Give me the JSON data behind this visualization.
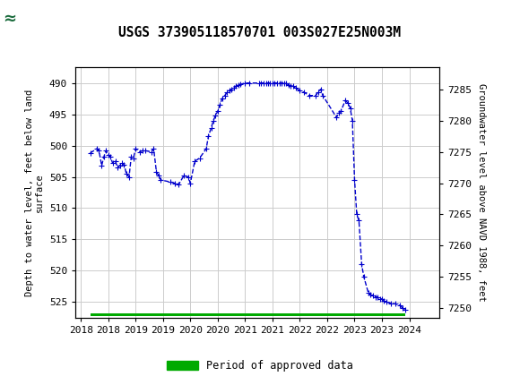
{
  "title": "USGS 373905118570701 003S027E25N003M",
  "ylabel_left": "Depth to water level, feet below land\nsurface",
  "ylabel_right": "Groundwater level above NAVD 1988, feet",
  "legend_label": "Period of approved data",
  "ylim_left": [
    527.5,
    487.5
  ],
  "ylim_right": [
    7248.5,
    7288.5
  ],
  "xlim": [
    2017.65,
    2024.3
  ],
  "yticks_left": [
    490,
    495,
    500,
    505,
    510,
    515,
    520,
    525
  ],
  "yticks_right": [
    7285,
    7280,
    7275,
    7270,
    7265,
    7260,
    7255,
    7250
  ],
  "line_color": "#0000CC",
  "bar_color": "#00AA00",
  "header_color": "#1A6B3C",
  "data_x": [
    2017.92,
    2018.04,
    2018.08,
    2018.13,
    2018.17,
    2018.21,
    2018.25,
    2018.29,
    2018.33,
    2018.38,
    2018.42,
    2018.46,
    2018.5,
    2018.54,
    2018.58,
    2018.63,
    2018.67,
    2018.71,
    2018.75,
    2018.83,
    2018.88,
    2018.92,
    2019.04,
    2019.08,
    2019.13,
    2019.17,
    2019.21,
    2019.38,
    2019.46,
    2019.54,
    2019.63,
    2019.71,
    2019.75,
    2019.83,
    2019.92,
    2020.04,
    2020.08,
    2020.13,
    2020.17,
    2020.21,
    2020.25,
    2020.29,
    2020.33,
    2020.38,
    2020.42,
    2020.46,
    2020.5,
    2020.54,
    2020.58,
    2020.63,
    2020.67,
    2020.75,
    2020.83,
    2021.0,
    2021.04,
    2021.08,
    2021.13,
    2021.17,
    2021.21,
    2021.25,
    2021.29,
    2021.33,
    2021.38,
    2021.42,
    2021.46,
    2021.5,
    2021.54,
    2021.58,
    2021.63,
    2021.67,
    2021.75,
    2021.83,
    2021.92,
    2022.04,
    2022.08,
    2022.13,
    2022.17,
    2022.42,
    2022.46,
    2022.5,
    2022.58,
    2022.63,
    2022.67,
    2022.71,
    2022.75,
    2022.79,
    2022.83,
    2022.88,
    2022.92,
    2023.0,
    2023.04,
    2023.08,
    2023.13,
    2023.17,
    2023.21,
    2023.25,
    2023.29,
    2023.33,
    2023.42,
    2023.5,
    2023.58,
    2023.63,
    2023.67
  ],
  "data_y_depth": [
    501.2,
    500.5,
    500.8,
    503.2,
    501.8,
    500.8,
    501.5,
    501.8,
    502.8,
    502.5,
    503.5,
    503.2,
    502.8,
    503.0,
    504.5,
    505.0,
    501.8,
    502.0,
    500.5,
    501.0,
    500.8,
    500.8,
    501.0,
    500.5,
    504.2,
    504.8,
    505.5,
    505.8,
    506.0,
    506.2,
    504.8,
    505.0,
    506.0,
    502.5,
    502.0,
    500.5,
    498.5,
    497.2,
    496.0,
    495.2,
    494.5,
    493.5,
    492.5,
    492.0,
    491.5,
    491.2,
    491.0,
    490.8,
    490.5,
    490.3,
    490.2,
    490.0,
    490.0,
    490.0,
    490.0,
    490.0,
    490.0,
    490.0,
    490.0,
    490.0,
    490.0,
    490.0,
    490.0,
    490.0,
    490.0,
    490.0,
    490.3,
    490.5,
    490.5,
    490.8,
    491.2,
    491.5,
    492.0,
    492.0,
    491.5,
    491.0,
    492.0,
    495.5,
    494.8,
    494.5,
    492.8,
    493.2,
    494.0,
    496.0,
    505.5,
    511.0,
    512.0,
    519.0,
    521.0,
    523.5,
    523.8,
    524.0,
    524.2,
    524.2,
    524.5,
    524.5,
    524.8,
    525.0,
    525.2,
    525.3,
    525.5,
    526.0,
    526.3
  ],
  "bar_x_start": 2017.92,
  "bar_x_end": 2023.67,
  "bar_y_depth": 527.0,
  "bar_height": 0.5,
  "xtick_positions": [
    2017.75,
    2018.25,
    2018.75,
    2019.25,
    2019.75,
    2020.25,
    2020.75,
    2021.25,
    2021.75,
    2022.25,
    2022.75,
    2023.25,
    2023.75
  ],
  "xtick_labels": [
    "2018",
    "2018",
    "2019",
    "2019",
    "2020",
    "2020",
    "2021",
    "2021",
    "2022",
    "2022",
    "2023",
    "2023",
    "2024"
  ]
}
